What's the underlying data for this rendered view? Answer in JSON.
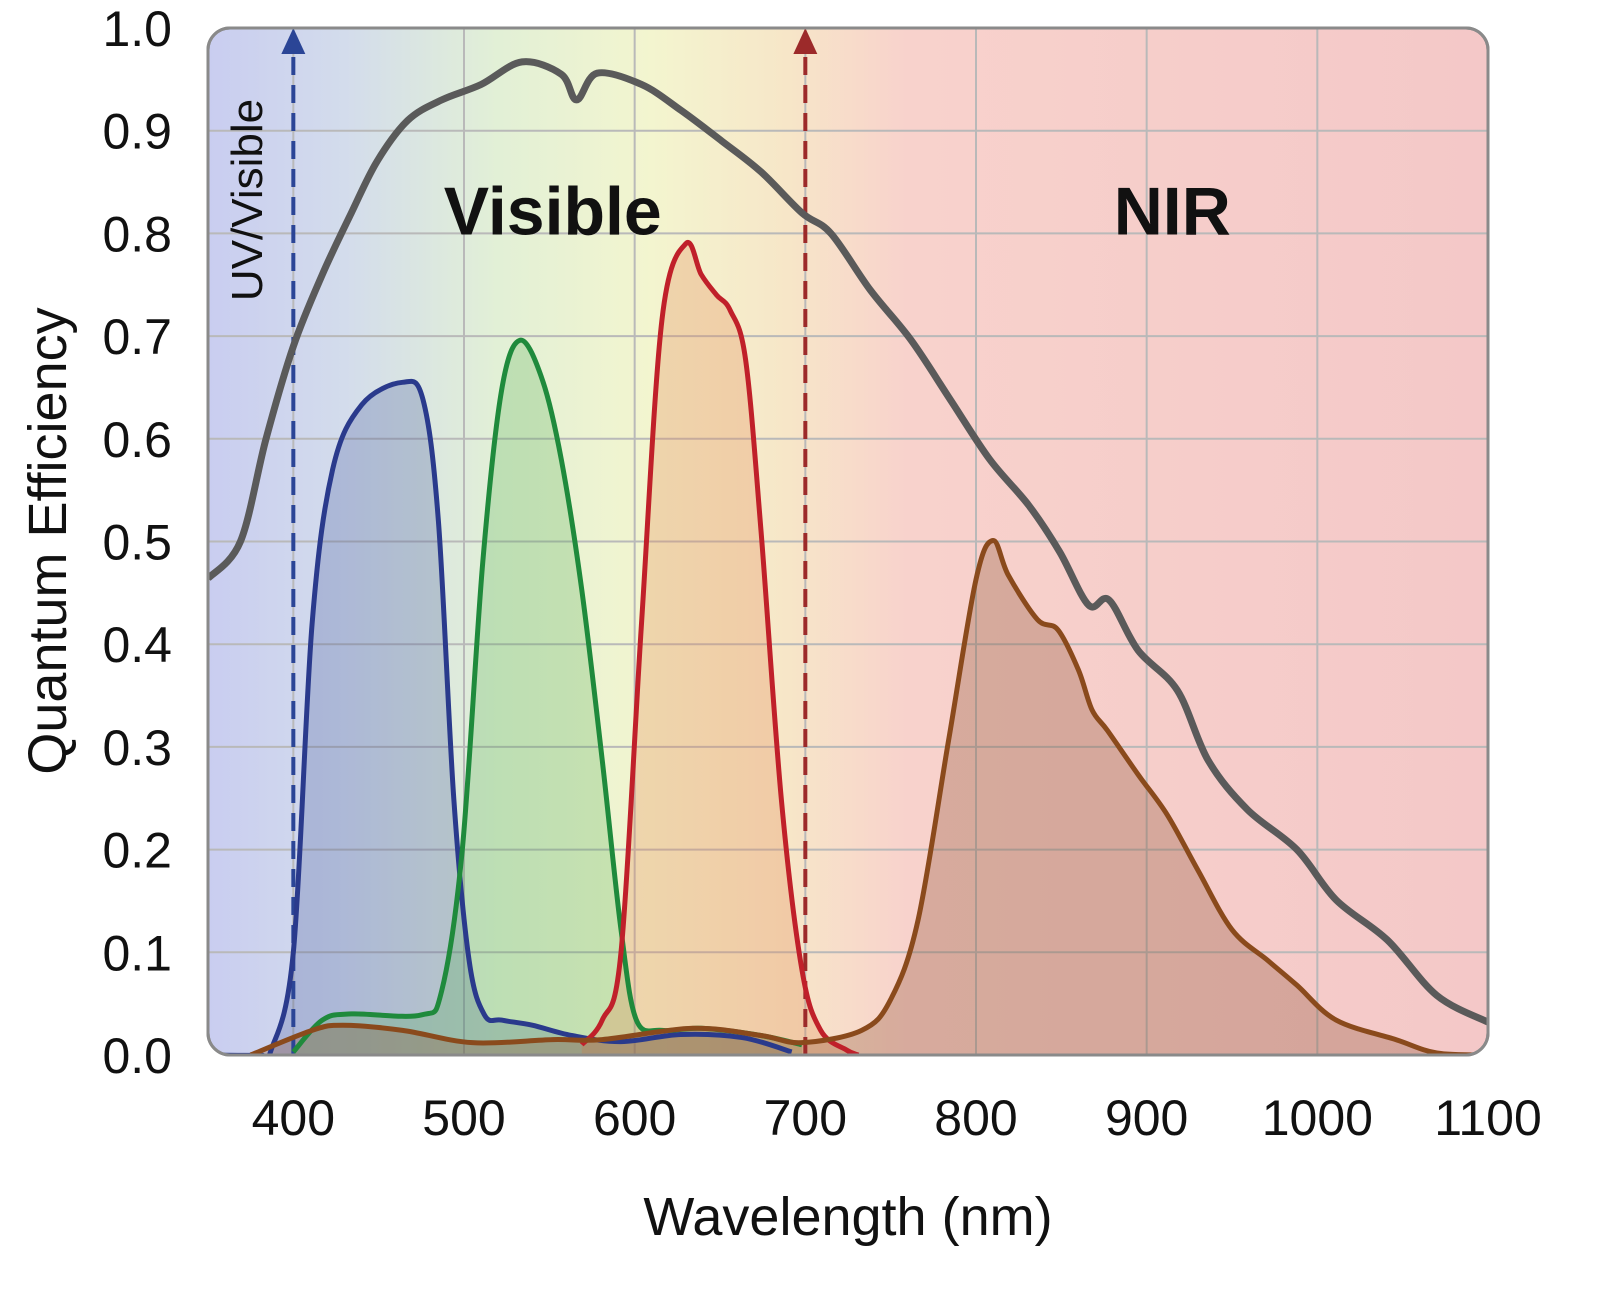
{
  "chart_data": {
    "type": "line",
    "title": "",
    "xlabel": "Wavelength (nm)",
    "ylabel": "Quantum Efficiency",
    "xlim": [
      350,
      1100
    ],
    "ylim": [
      0,
      1.0
    ],
    "grid": true,
    "xticks": [
      "400",
      "500",
      "600",
      "700",
      "800",
      "900",
      "1000",
      "1100"
    ],
    "xtick_values": [
      400,
      500,
      600,
      700,
      800,
      900,
      1000,
      1100
    ],
    "yticks": [
      "0.0",
      "0.1",
      "0.2",
      "0.3",
      "0.4",
      "0.5",
      "0.6",
      "0.7",
      "0.8",
      "0.9",
      "1.0"
    ],
    "ytick_values": [
      0,
      0.1,
      0.2,
      0.3,
      0.4,
      0.5,
      0.6,
      0.7,
      0.8,
      0.9,
      1.0
    ],
    "background_bands": [
      {
        "wavelength": 350,
        "color": "#c9cdf0"
      },
      {
        "wavelength": 430,
        "color": "#d3dcec"
      },
      {
        "wavelength": 520,
        "color": "#e2f0d6"
      },
      {
        "wavelength": 610,
        "color": "#f3f5cf"
      },
      {
        "wavelength": 690,
        "color": "#f7e6c8"
      },
      {
        "wavelength": 760,
        "color": "#f8d2cc"
      },
      {
        "wavelength": 1100,
        "color": "#f4c8c8"
      }
    ],
    "annotations": [
      {
        "text": "UV/Visible",
        "x": 380,
        "y": 0.83,
        "rotated": true
      },
      {
        "text": "Visible",
        "x": 552,
        "y": 0.84,
        "bold": true
      },
      {
        "text": "NIR",
        "x": 915,
        "y": 0.84,
        "bold": true
      }
    ],
    "markers": [
      {
        "x": 400,
        "color": "#2b4596",
        "style": "dashed-arrow"
      },
      {
        "x": 700,
        "color": "#9c2a2a",
        "style": "dashed-arrow"
      }
    ],
    "series": [
      {
        "color": "#5a5a5a",
        "fill": "none",
        "x": [
          350,
          369,
          384,
          400,
          417,
          434,
          449,
          467,
          487,
          510,
          534,
          557,
          566,
          578,
          604,
          627,
          651,
          674,
          698,
          715,
          738,
          762,
          785,
          808,
          831,
          849,
          866,
          878,
          895,
          918,
          936,
          959,
          988,
          1011,
          1041,
          1070,
          1100
        ],
        "y": [
          0.464,
          0.5,
          0.6,
          0.69,
          0.76,
          0.82,
          0.87,
          0.91,
          0.93,
          0.945,
          0.967,
          0.955,
          0.93,
          0.956,
          0.945,
          0.92,
          0.89,
          0.86,
          0.82,
          0.8,
          0.745,
          0.696,
          0.638,
          0.58,
          0.535,
          0.49,
          0.438,
          0.443,
          0.394,
          0.355,
          0.287,
          0.239,
          0.2,
          0.151,
          0.112,
          0.058,
          0.032
        ]
      },
      {
        "color": "#2a3a8c",
        "fill": "rgba(60,80,150,0.25)",
        "x": [
          350,
          380,
          387,
          400,
          411,
          423,
          440,
          464,
          476,
          485,
          494,
          503,
          512,
          522,
          540,
          563,
          592,
          627,
          663,
          692
        ],
        "y": [
          0,
          0,
          0.005,
          0.1,
          0.42,
          0.57,
          0.633,
          0.655,
          0.638,
          0.52,
          0.25,
          0.092,
          0.039,
          0.034,
          0.029,
          0.019,
          0.013,
          0.02,
          0.017,
          0.003
        ]
      },
      {
        "color": "#1f8a3c",
        "fill": "rgba(80,170,80,0.25)",
        "x": [
          400,
          417,
          434,
          475,
          487,
          499,
          511,
          522,
          533,
          546,
          557,
          569,
          581,
          592,
          601,
          616,
          639,
          674,
          698
        ],
        "y": [
          0.003,
          0.034,
          0.04,
          0.039,
          0.063,
          0.2,
          0.48,
          0.647,
          0.696,
          0.657,
          0.58,
          0.453,
          0.287,
          0.122,
          0.034,
          0.024,
          0.026,
          0.019,
          0.01
        ]
      },
      {
        "color": "#c0202a",
        "fill": "rgba(230,140,90,0.3)",
        "x": [
          569,
          581,
          592,
          604,
          616,
          630,
          639,
          648,
          656,
          665,
          674,
          686,
          698,
          709,
          724,
          731
        ],
        "y": [
          0.01,
          0.034,
          0.1,
          0.42,
          0.716,
          0.79,
          0.76,
          0.74,
          0.725,
          0.677,
          0.511,
          0.248,
          0.083,
          0.024,
          0.005,
          0
        ]
      },
      {
        "color": "#8a4a1c",
        "fill": "rgba(140,80,50,0.3)",
        "x": [
          375,
          411,
          429,
          464,
          505,
          552,
          581,
          634,
          674,
          698,
          733,
          750,
          766,
          784,
          800,
          810,
          819,
          836,
          848,
          860,
          868,
          877,
          895,
          912,
          930,
          950,
          971,
          988,
          1011,
          1046,
          1070,
          1100
        ],
        "y": [
          0,
          0.024,
          0.029,
          0.024,
          0.012,
          0.015,
          0.015,
          0.026,
          0.019,
          0.012,
          0.024,
          0.054,
          0.131,
          0.307,
          0.463,
          0.501,
          0.467,
          0.424,
          0.414,
          0.375,
          0.336,
          0.316,
          0.273,
          0.234,
          0.18,
          0.122,
          0.092,
          0.068,
          0.034,
          0.015,
          0.002,
          0
        ]
      }
    ]
  }
}
